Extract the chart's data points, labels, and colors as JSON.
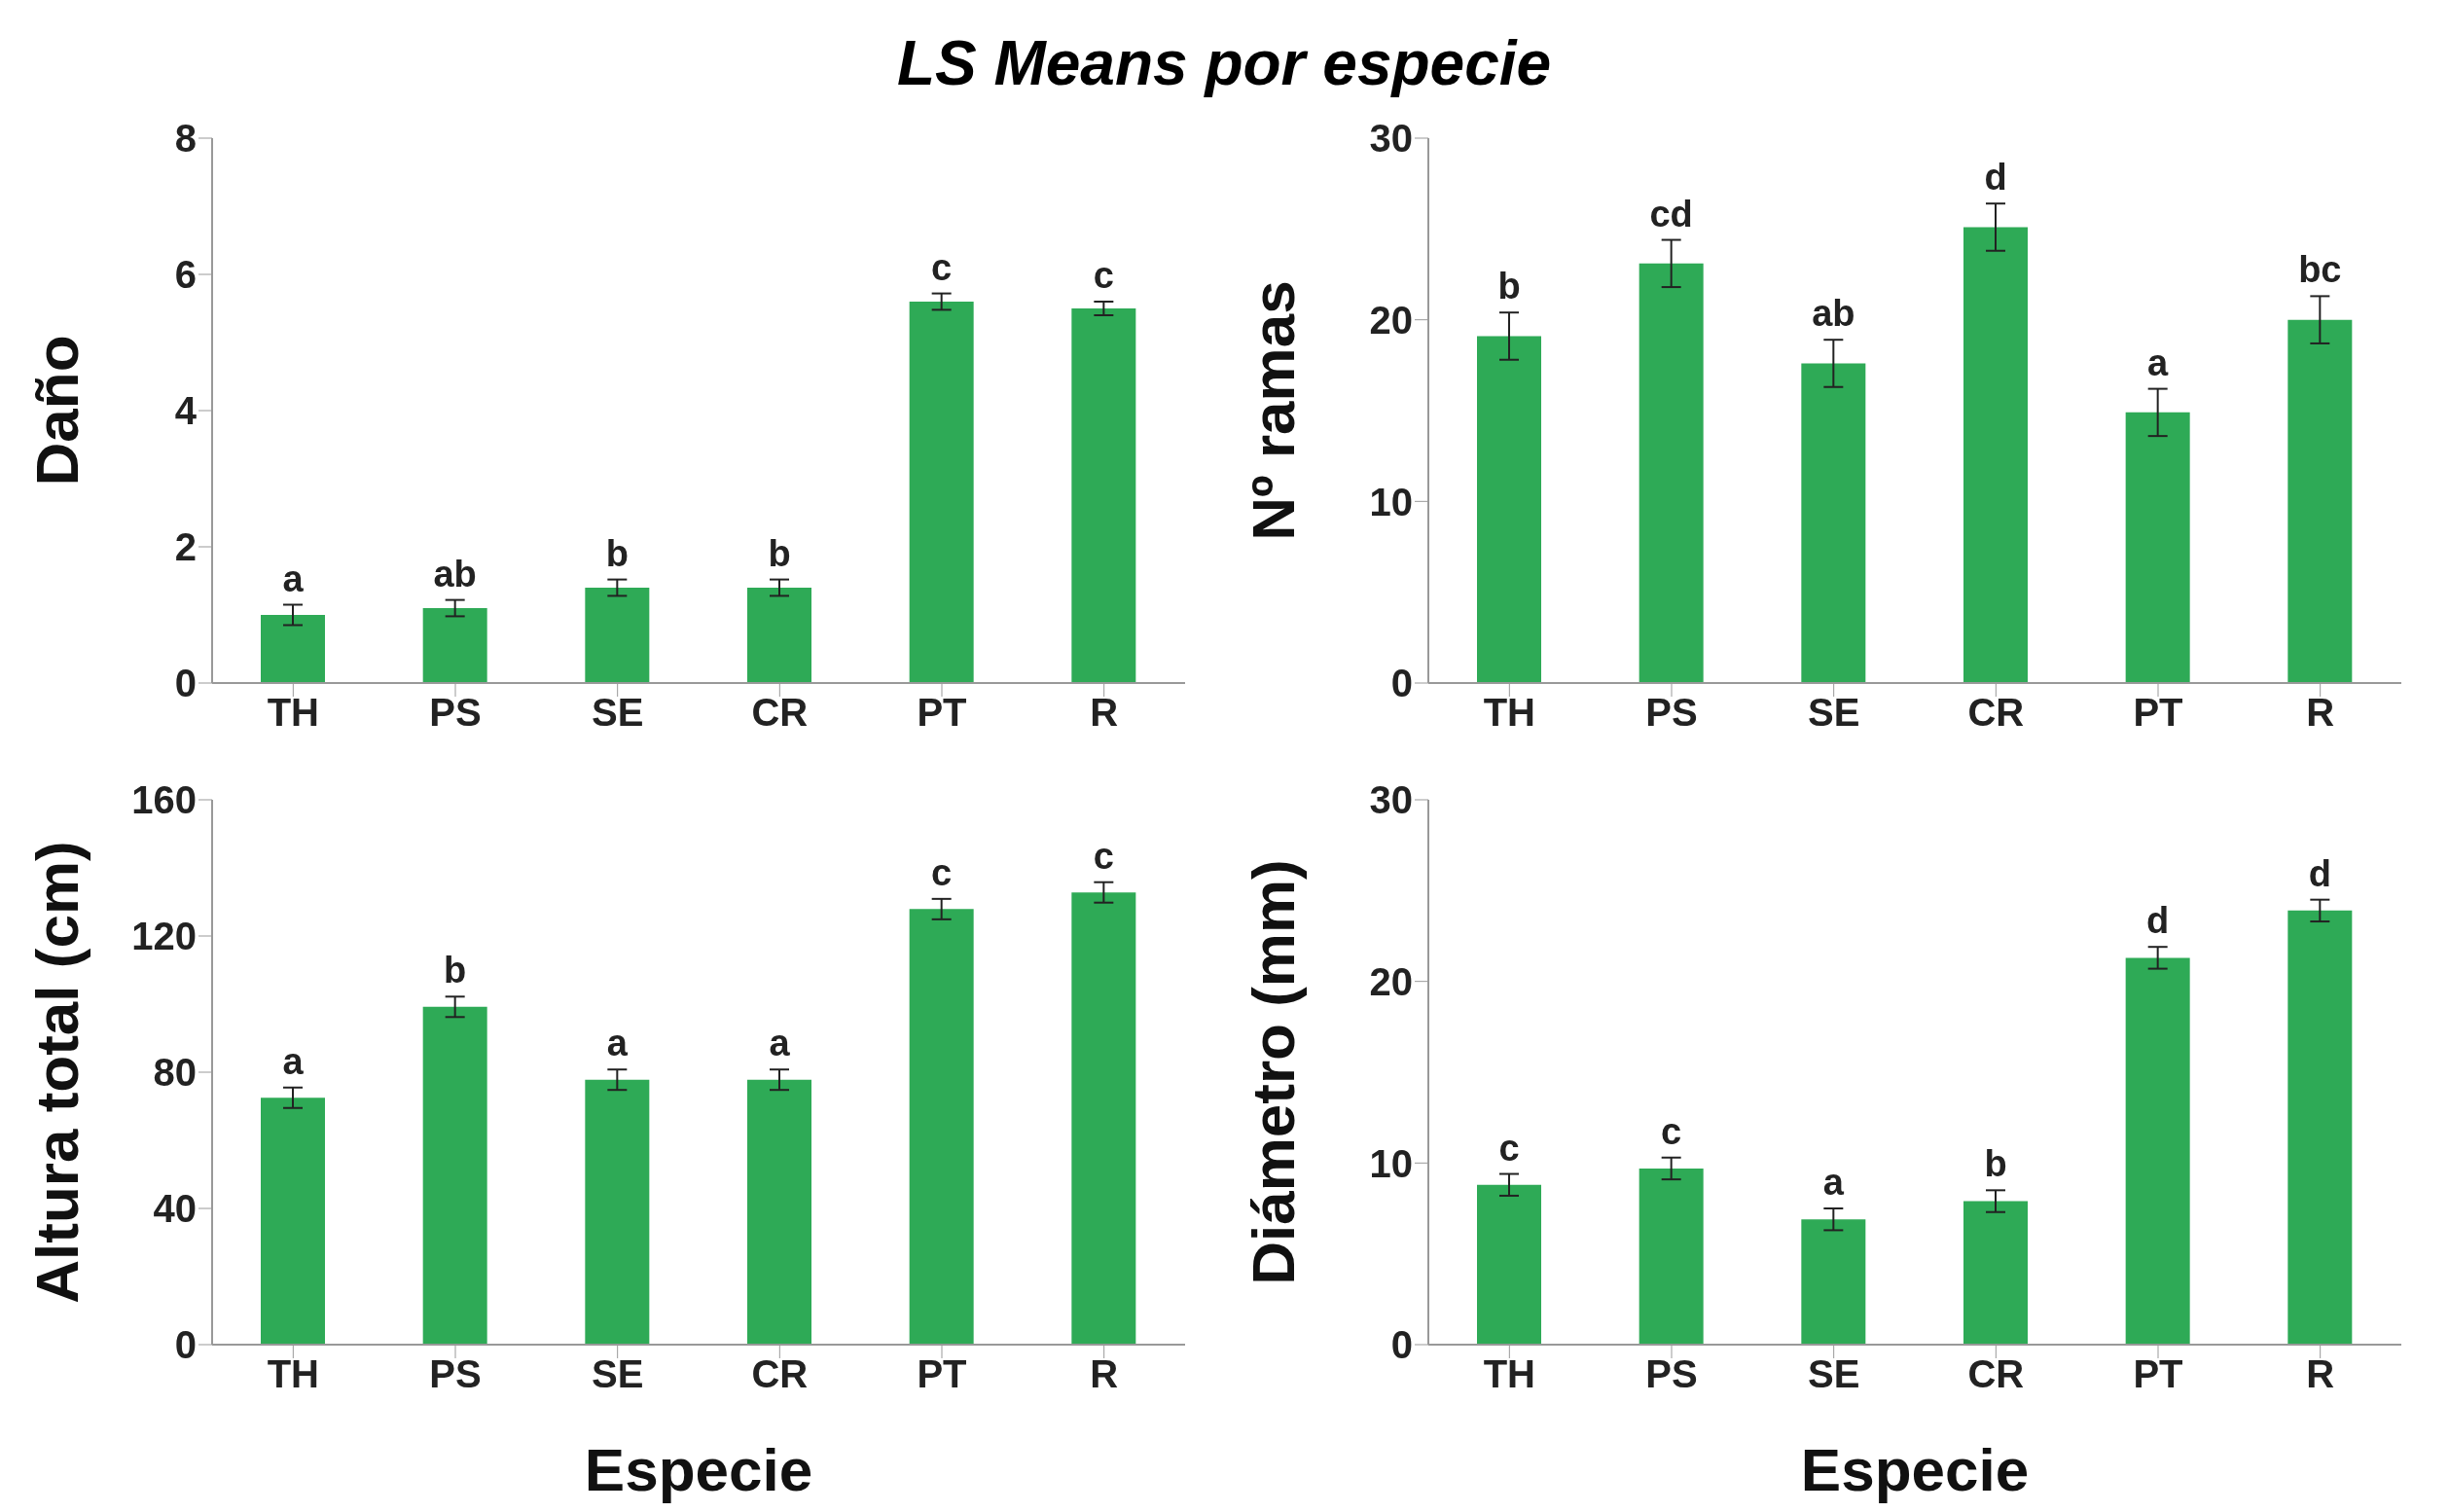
{
  "chart_data": [
    {
      "type": "bar",
      "title": "LS Means por especie",
      "ylabel": "Daño",
      "categories": [
        "TH",
        "PS",
        "SE",
        "CR",
        "PT",
        "R"
      ],
      "values": [
        1.0,
        1.1,
        1.4,
        1.4,
        5.6,
        5.5
      ],
      "errors": [
        0.15,
        0.12,
        0.12,
        0.12,
        0.12,
        0.1
      ],
      "value_labels": [
        "a",
        "ab",
        "b",
        "b",
        "c",
        "c"
      ],
      "color": "#2eaa56",
      "ylim": [
        0,
        8
      ],
      "yticks": [
        0,
        2,
        4,
        6,
        8
      ],
      "grid": false,
      "legend": false
    },
    {
      "type": "bar",
      "ylabel": "Nº ramas",
      "categories": [
        "TH",
        "PS",
        "SE",
        "CR",
        "PT",
        "R"
      ],
      "values": [
        19.1,
        23.1,
        17.6,
        25.1,
        14.9,
        20.0
      ],
      "errors": [
        1.3,
        1.3,
        1.3,
        1.3,
        1.3,
        1.3
      ],
      "value_labels": [
        "b",
        "cd",
        "ab",
        "d",
        "a",
        "bc"
      ],
      "color": "#2eaa56",
      "ylim": [
        0,
        30
      ],
      "yticks": [
        0,
        10,
        20,
        30
      ],
      "grid": false,
      "legend": false
    },
    {
      "type": "bar",
      "ylabel": "Altura total (cm)",
      "xlabel": "Especie",
      "categories": [
        "TH",
        "PS",
        "SE",
        "CR",
        "PT",
        "R"
      ],
      "values": [
        72.5,
        99.2,
        77.8,
        77.8,
        127.9,
        132.8
      ],
      "errors": [
        3,
        3,
        3,
        3,
        3,
        3
      ],
      "value_labels": [
        "a",
        "b",
        "a",
        "a",
        "c",
        "c"
      ],
      "color": "#2eaa56",
      "ylim": [
        0,
        160
      ],
      "yticks": [
        0,
        40,
        80,
        120,
        160
      ],
      "grid": false,
      "legend": false
    },
    {
      "type": "bar",
      "ylabel": "Diámetro (mm)",
      "xlabel": "Especie",
      "categories": [
        "TH",
        "PS",
        "SE",
        "CR",
        "PT",
        "R"
      ],
      "values": [
        8.8,
        9.7,
        6.9,
        7.9,
        21.3,
        23.9
      ],
      "errors": [
        0.6,
        0.6,
        0.6,
        0.6,
        0.6,
        0.6
      ],
      "value_labels": [
        "c",
        "c",
        "a",
        "b",
        "d",
        "d"
      ],
      "color": "#2eaa56",
      "ylim": [
        0,
        30
      ],
      "yticks": [
        0,
        10,
        20,
        30
      ],
      "grid": false,
      "legend": false
    }
  ]
}
